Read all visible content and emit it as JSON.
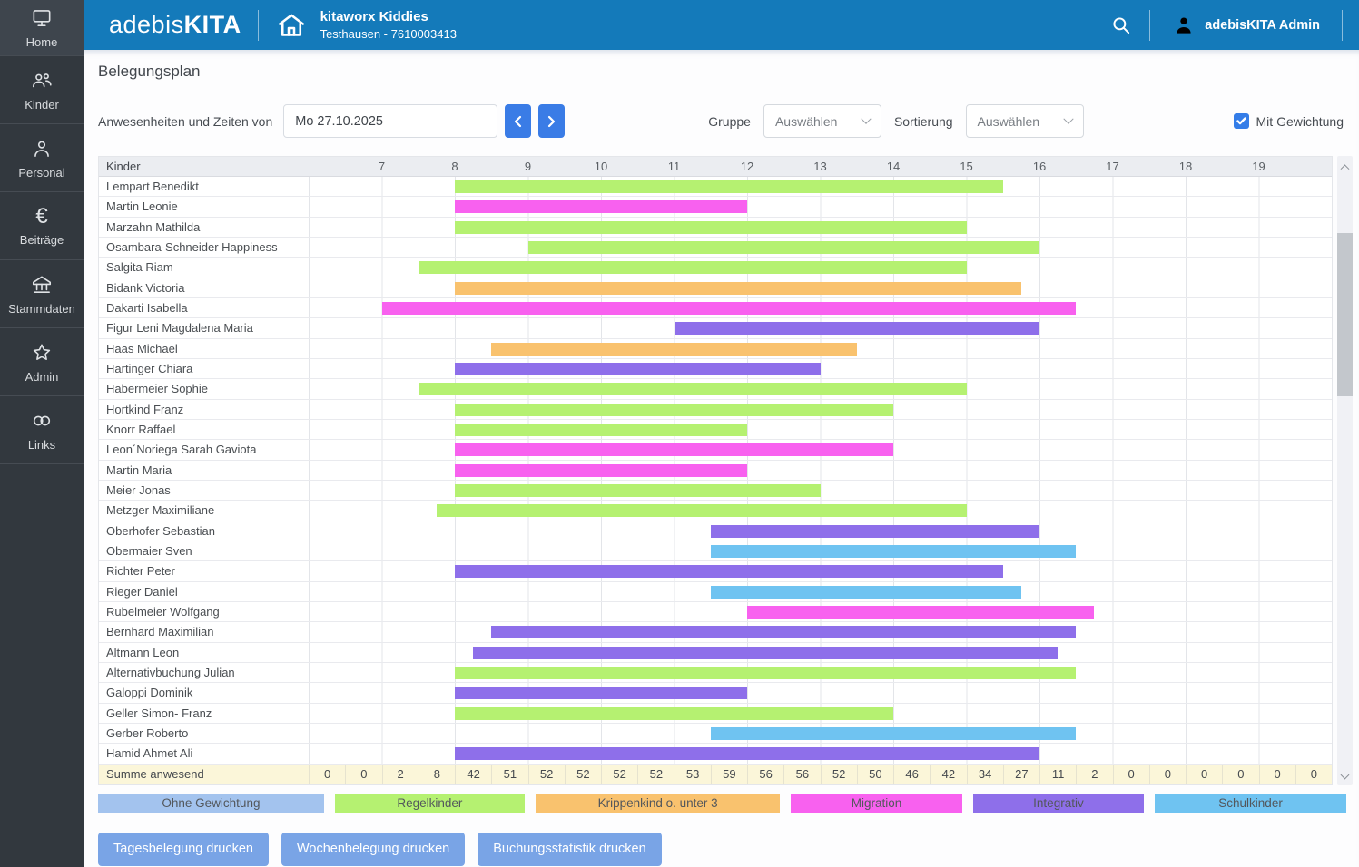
{
  "topbar": {
    "logo_light": "adebis",
    "logo_bold": "KITA",
    "facility_name": "kitaworx Kiddies",
    "facility_sub": "Testhausen - 7610003413",
    "user_name": "adebisKITA Admin"
  },
  "sidebar": {
    "items": [
      {
        "label": "Home",
        "icon": "monitor-icon"
      },
      {
        "label": "Kinder",
        "icon": "children-icon"
      },
      {
        "label": "Personal",
        "icon": "person-icon"
      },
      {
        "label": "Beiträge",
        "icon": "euro-icon"
      },
      {
        "label": "Stammdaten",
        "icon": "bank-icon"
      },
      {
        "label": "Admin",
        "icon": "star-icon"
      },
      {
        "label": "Links",
        "icon": "link-icon"
      }
    ]
  },
  "page": {
    "title": "Belegungsplan",
    "date_label": "Anwesenheiten und Zeiten von",
    "date_value": "Mo 27.10.2025",
    "gruppe_label": "Gruppe",
    "gruppe_value": "Auswählen",
    "sortierung_label": "Sortierung",
    "sortierung_value": "Auswählen",
    "gewichtung_label": "Mit Gewichtung",
    "gewichtung_checked": true
  },
  "colors": {
    "regelkinder": "#b5f171",
    "krippenkind": "#f9c26e",
    "migration": "#f861ef",
    "integrativ": "#8e6fea",
    "schulkinder": "#6fc3f1",
    "ohne_gewichtung": "#a3c3ee",
    "topbar_blue": "#147aba",
    "accent_blue": "#3a7ce6",
    "summary_yellow": "#fbf6d9"
  },
  "chart_data": {
    "type": "gantt-occupancy",
    "title": "Belegungsplan Mo 27.10.2025",
    "kinder_header": "Kinder",
    "axis_start_hour": 6,
    "axis_end_hour": 20,
    "hour_labels": [
      7,
      8,
      9,
      10,
      11,
      12,
      13,
      14,
      15,
      16,
      17,
      18,
      19
    ],
    "rows": [
      {
        "name": "Lempart Benedikt",
        "start": 8,
        "end": 15.5,
        "category": "regelkinder"
      },
      {
        "name": "Martin Leonie",
        "start": 8,
        "end": 12,
        "category": "migration"
      },
      {
        "name": "Marzahn Mathilda",
        "start": 8,
        "end": 15,
        "category": "regelkinder"
      },
      {
        "name": "Osambara-Schneider Happiness",
        "start": 9,
        "end": 16,
        "category": "regelkinder"
      },
      {
        "name": "Salgita Riam",
        "start": 7.5,
        "end": 15,
        "category": "regelkinder"
      },
      {
        "name": "Bidank Victoria",
        "start": 8,
        "end": 15.75,
        "category": "krippenkind"
      },
      {
        "name": "Dakarti Isabella",
        "start": 7,
        "end": 16.5,
        "category": "migration"
      },
      {
        "name": "Figur Leni Magdalena Maria",
        "start": 11,
        "end": 16,
        "category": "integrativ"
      },
      {
        "name": "Haas Michael",
        "start": 8.5,
        "end": 13.5,
        "category": "krippenkind"
      },
      {
        "name": "Hartinger Chiara",
        "start": 8,
        "end": 13,
        "category": "integrativ"
      },
      {
        "name": "Habermeier Sophie",
        "start": 7.5,
        "end": 15,
        "category": "regelkinder"
      },
      {
        "name": "Hortkind Franz",
        "start": 8,
        "end": 14,
        "category": "regelkinder"
      },
      {
        "name": "Knorr Raffael",
        "start": 8,
        "end": 12,
        "category": "regelkinder"
      },
      {
        "name": "Leon´Noriega Sarah Gaviota",
        "start": 8,
        "end": 14,
        "category": "migration"
      },
      {
        "name": "Martin Maria",
        "start": 8,
        "end": 12,
        "category": "migration"
      },
      {
        "name": "Meier Jonas",
        "start": 8,
        "end": 13,
        "category": "regelkinder"
      },
      {
        "name": "Metzger Maximiliane",
        "start": 7.75,
        "end": 15,
        "category": "regelkinder"
      },
      {
        "name": "Oberhofer Sebastian",
        "start": 11.5,
        "end": 16,
        "category": "integrativ"
      },
      {
        "name": "Obermaier Sven",
        "start": 11.5,
        "end": 16.5,
        "category": "schulkinder"
      },
      {
        "name": "Richter Peter",
        "start": 8,
        "end": 15.5,
        "category": "integrativ"
      },
      {
        "name": "Rieger Daniel",
        "start": 11.5,
        "end": 15.75,
        "category": "schulkinder"
      },
      {
        "name": "Rubelmeier Wolfgang",
        "start": 12,
        "end": 16.75,
        "category": "migration"
      },
      {
        "name": "Bernhard Maximilian",
        "start": 8.5,
        "end": 16.5,
        "category": "integrativ"
      },
      {
        "name": "Altmann Leon",
        "start": 8.25,
        "end": 16.25,
        "category": "integrativ"
      },
      {
        "name": "Alternativbuchung Julian",
        "start": 8,
        "end": 16.5,
        "category": "regelkinder"
      },
      {
        "name": "Galoppi Dominik",
        "start": 8,
        "end": 12,
        "category": "integrativ"
      },
      {
        "name": "Geller Simon- Franz",
        "start": 8,
        "end": 14,
        "category": "regelkinder"
      },
      {
        "name": "Gerber Roberto",
        "start": 11.5,
        "end": 16.5,
        "category": "schulkinder"
      },
      {
        "name": "Hamid Ahmet Ali",
        "start": 8,
        "end": 16,
        "category": "integrativ"
      }
    ],
    "summary_label": "Summe anwesend",
    "summary_interval_minutes": 30,
    "summary_values": [
      0,
      0,
      2,
      8,
      42,
      51,
      52,
      52,
      52,
      52,
      53,
      59,
      56,
      56,
      52,
      50,
      46,
      42,
      34,
      27,
      11,
      2,
      0,
      0,
      0,
      0,
      0,
      0
    ]
  },
  "legend": [
    {
      "label": "Ohne Gewichtung",
      "color_key": "ohne_gewichtung"
    },
    {
      "label": "Regelkinder",
      "color_key": "regelkinder"
    },
    {
      "label": "Krippenkind o. unter 3",
      "color_key": "krippenkind"
    },
    {
      "label": "Migration",
      "color_key": "migration"
    },
    {
      "label": "Integrativ",
      "color_key": "integrativ"
    },
    {
      "label": "Schulkinder",
      "color_key": "schulkinder"
    }
  ],
  "action_buttons": [
    {
      "label": "Tagesbelegung drucken"
    },
    {
      "label": "Wochenbelegung drucken"
    },
    {
      "label": "Buchungsstatistik drucken"
    }
  ]
}
